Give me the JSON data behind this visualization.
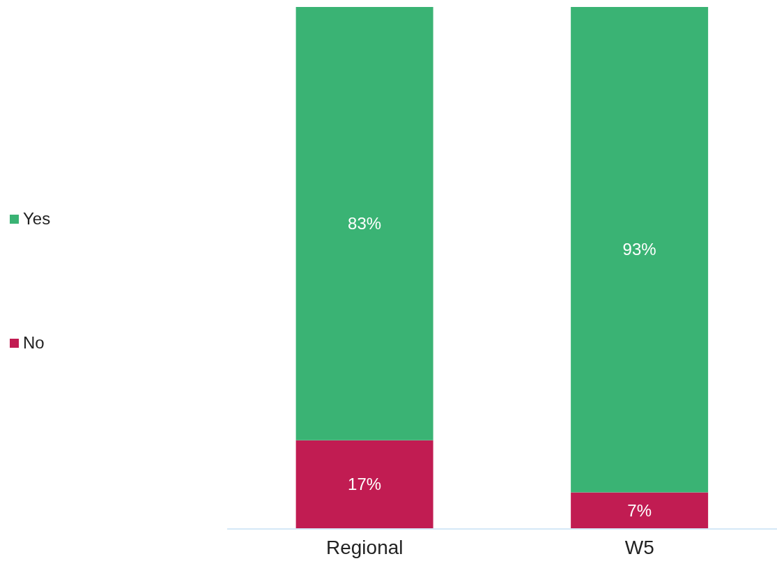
{
  "chart_data": {
    "type": "bar",
    "stacked": true,
    "categories": [
      "Regional",
      "W5"
    ],
    "legend": "left",
    "series": [
      {
        "name": "No",
        "color": "#c11c52",
        "values": [
          17,
          7
        ],
        "value_labels": [
          "17%",
          "7%"
        ]
      },
      {
        "name": "Yes",
        "color": "#3ab374",
        "values": [
          83,
          93
        ],
        "value_labels": [
          "83%",
          "93%"
        ]
      }
    ]
  }
}
